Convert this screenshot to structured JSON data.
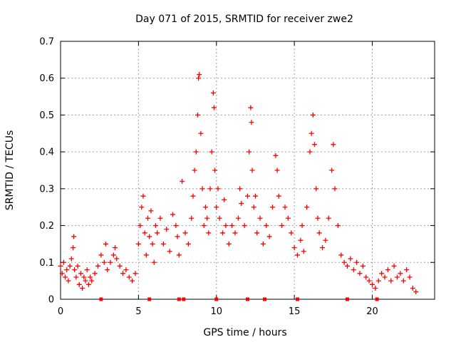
{
  "chart_data": {
    "type": "scatter",
    "title": "Day 071 of 2015, SRMTID for receiver zwe2",
    "xlabel": "GPS time / hours",
    "ylabel": "SRMTID / TECUs",
    "xlim": [
      0,
      24
    ],
    "ylim": [
      0,
      0.7
    ],
    "x_ticks": [
      0,
      5,
      10,
      15,
      20
    ],
    "x_tick_labels": [
      "0",
      "5",
      "10",
      "15",
      "20"
    ],
    "y_ticks": [
      0,
      0.1,
      0.2,
      0.3,
      0.4,
      0.5,
      0.6,
      0.7
    ],
    "y_tick_labels": [
      "0",
      "0.1",
      "0.2",
      "0.3",
      "0.4",
      "0.5",
      "0.6",
      "0.7"
    ],
    "grid": true,
    "marker": "+",
    "color": "#ff0000",
    "series": [
      {
        "name": "SRMTID",
        "points": [
          [
            0.0,
            0.09
          ],
          [
            0.1,
            0.07
          ],
          [
            0.2,
            0.1
          ],
          [
            0.3,
            0.06
          ],
          [
            0.4,
            0.08
          ],
          [
            0.5,
            0.05
          ],
          [
            0.6,
            0.09
          ],
          [
            0.7,
            0.11
          ],
          [
            0.8,
            0.14
          ],
          [
            0.85,
            0.17
          ],
          [
            0.9,
            0.08
          ],
          [
            1.0,
            0.06
          ],
          [
            1.1,
            0.09
          ],
          [
            1.2,
            0.04
          ],
          [
            1.3,
            0.07
          ],
          [
            1.4,
            0.03
          ],
          [
            1.5,
            0.06
          ],
          [
            1.6,
            0.05
          ],
          [
            1.7,
            0.08
          ],
          [
            1.8,
            0.04
          ],
          [
            1.9,
            0.06
          ],
          [
            2.0,
            0.05
          ],
          [
            2.2,
            0.07
          ],
          [
            2.4,
            0.09
          ],
          [
            2.6,
            0.12
          ],
          [
            2.8,
            0.1
          ],
          [
            2.9,
            0.15
          ],
          [
            3.0,
            0.08
          ],
          [
            3.2,
            0.1
          ],
          [
            3.4,
            0.12
          ],
          [
            3.5,
            0.14
          ],
          [
            3.6,
            0.11
          ],
          [
            3.8,
            0.09
          ],
          [
            4.0,
            0.07
          ],
          [
            4.2,
            0.08
          ],
          [
            4.4,
            0.06
          ],
          [
            4.6,
            0.05
          ],
          [
            4.8,
            0.07
          ],
          [
            5.0,
            0.15
          ],
          [
            5.1,
            0.2
          ],
          [
            5.2,
            0.25
          ],
          [
            5.3,
            0.28
          ],
          [
            5.4,
            0.18
          ],
          [
            5.5,
            0.12
          ],
          [
            5.6,
            0.22
          ],
          [
            5.7,
            0.17
          ],
          [
            5.8,
            0.24
          ],
          [
            5.9,
            0.15
          ],
          [
            6.0,
            0.1
          ],
          [
            6.1,
            0.2
          ],
          [
            6.2,
            0.18
          ],
          [
            6.4,
            0.22
          ],
          [
            6.6,
            0.15
          ],
          [
            6.8,
            0.19
          ],
          [
            7.0,
            0.13
          ],
          [
            7.2,
            0.23
          ],
          [
            7.4,
            0.2
          ],
          [
            7.5,
            0.17
          ],
          [
            7.6,
            0.12
          ],
          [
            7.8,
            0.32
          ],
          [
            8.0,
            0.18
          ],
          [
            8.2,
            0.15
          ],
          [
            8.4,
            0.22
          ],
          [
            8.5,
            0.28
          ],
          [
            8.6,
            0.35
          ],
          [
            8.7,
            0.4
          ],
          [
            8.8,
            0.5
          ],
          [
            8.85,
            0.6
          ],
          [
            8.9,
            0.61
          ],
          [
            9.0,
            0.45
          ],
          [
            9.1,
            0.3
          ],
          [
            9.2,
            0.2
          ],
          [
            9.3,
            0.25
          ],
          [
            9.4,
            0.22
          ],
          [
            9.5,
            0.18
          ],
          [
            9.6,
            0.3
          ],
          [
            9.7,
            0.4
          ],
          [
            9.8,
            0.56
          ],
          [
            9.85,
            0.52
          ],
          [
            9.9,
            0.35
          ],
          [
            10.0,
            0.25
          ],
          [
            10.1,
            0.3
          ],
          [
            10.2,
            0.22
          ],
          [
            10.4,
            0.18
          ],
          [
            10.5,
            0.27
          ],
          [
            10.6,
            0.2
          ],
          [
            10.8,
            0.15
          ],
          [
            11.0,
            0.2
          ],
          [
            11.2,
            0.18
          ],
          [
            11.4,
            0.22
          ],
          [
            11.5,
            0.3
          ],
          [
            11.6,
            0.26
          ],
          [
            11.8,
            0.2
          ],
          [
            12.0,
            0.28
          ],
          [
            12.1,
            0.4
          ],
          [
            12.2,
            0.52
          ],
          [
            12.25,
            0.48
          ],
          [
            12.3,
            0.35
          ],
          [
            12.4,
            0.25
          ],
          [
            12.5,
            0.28
          ],
          [
            12.6,
            0.18
          ],
          [
            12.8,
            0.22
          ],
          [
            13.0,
            0.15
          ],
          [
            13.2,
            0.2
          ],
          [
            13.4,
            0.17
          ],
          [
            13.6,
            0.25
          ],
          [
            13.8,
            0.39
          ],
          [
            13.9,
            0.35
          ],
          [
            14.0,
            0.28
          ],
          [
            14.2,
            0.2
          ],
          [
            14.4,
            0.25
          ],
          [
            14.6,
            0.22
          ],
          [
            14.8,
            0.18
          ],
          [
            15.0,
            0.14
          ],
          [
            15.2,
            0.12
          ],
          [
            15.4,
            0.16
          ],
          [
            15.5,
            0.2
          ],
          [
            15.6,
            0.13
          ],
          [
            15.8,
            0.25
          ],
          [
            16.0,
            0.4
          ],
          [
            16.1,
            0.45
          ],
          [
            16.2,
            0.5
          ],
          [
            16.3,
            0.42
          ],
          [
            16.4,
            0.3
          ],
          [
            16.5,
            0.22
          ],
          [
            16.6,
            0.18
          ],
          [
            16.8,
            0.14
          ],
          [
            17.0,
            0.16
          ],
          [
            17.2,
            0.22
          ],
          [
            17.4,
            0.35
          ],
          [
            17.5,
            0.42
          ],
          [
            17.6,
            0.3
          ],
          [
            17.8,
            0.2
          ],
          [
            18.0,
            0.12
          ],
          [
            18.2,
            0.1
          ],
          [
            18.4,
            0.09
          ],
          [
            18.6,
            0.11
          ],
          [
            18.8,
            0.08
          ],
          [
            19.0,
            0.1
          ],
          [
            19.2,
            0.07
          ],
          [
            19.4,
            0.09
          ],
          [
            19.6,
            0.06
          ],
          [
            19.8,
            0.05
          ],
          [
            20.0,
            0.04
          ],
          [
            20.2,
            0.03
          ],
          [
            20.4,
            0.05
          ],
          [
            20.6,
            0.07
          ],
          [
            20.8,
            0.06
          ],
          [
            21.0,
            0.08
          ],
          [
            21.2,
            0.05
          ],
          [
            21.4,
            0.09
          ],
          [
            21.6,
            0.06
          ],
          [
            21.8,
            0.07
          ],
          [
            22.0,
            0.05
          ],
          [
            22.2,
            0.08
          ],
          [
            22.4,
            0.06
          ],
          [
            22.6,
            0.03
          ],
          [
            22.8,
            0.02
          ]
        ]
      }
    ],
    "baseline_markers_x": [
      2.6,
      5.7,
      7.6,
      7.9,
      10.0,
      12.0,
      13.1,
      15.2,
      18.4,
      20.3
    ]
  }
}
